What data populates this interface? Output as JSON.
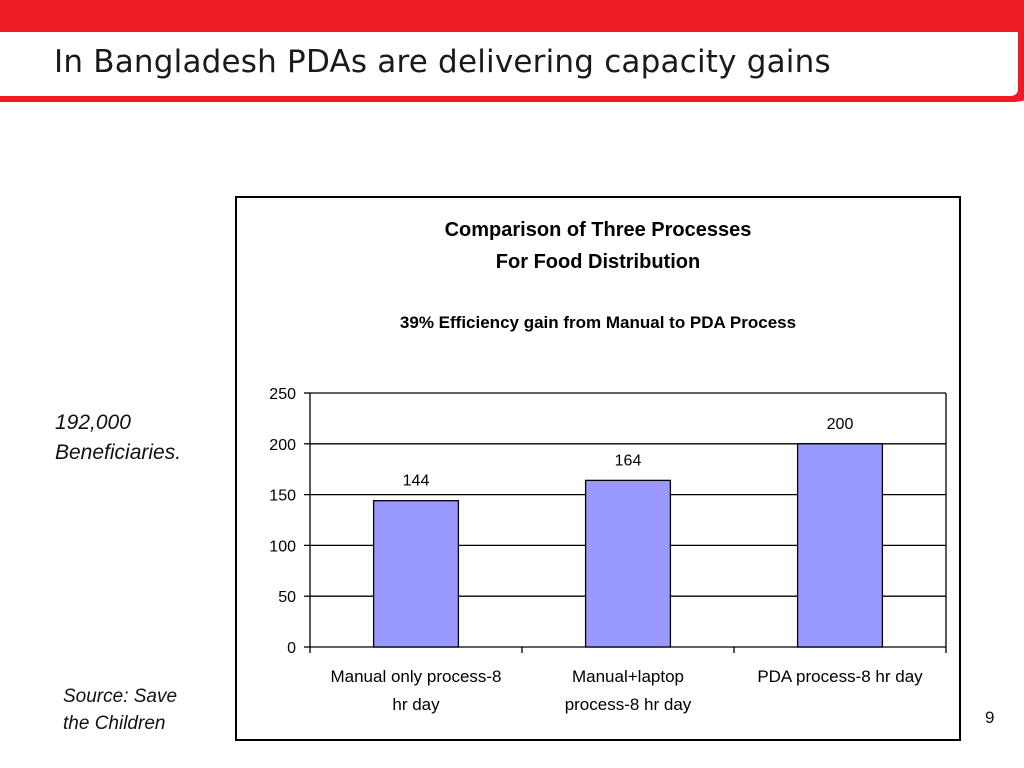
{
  "slide": {
    "title": "In Bangladesh PDAs are delivering capacity gains",
    "beneficiaries_line1": "192,000",
    "beneficiaries_line2": "Beneficiaries.",
    "source_line1": "Source: Save",
    "source_line2": "the Children",
    "page_number": "9"
  },
  "colors": {
    "accent": "#ee1c25",
    "bar": "#9999ff",
    "text": "#000000"
  },
  "chart_data": {
    "type": "bar",
    "title": "Comparison of Three Processes",
    "subtitle": "For Food Distribution",
    "annotation": "39% Efficiency gain from Manual to PDA Process",
    "categories": [
      {
        "line1": "Manual only process-8",
        "line2": "hr day"
      },
      {
        "line1": "Manual+laptop",
        "line2": "process-8 hr day"
      },
      {
        "line1": "PDA process-8 hr day",
        "line2": ""
      }
    ],
    "values": [
      144,
      164,
      200
    ],
    "data_labels": [
      "144",
      "164",
      "200"
    ],
    "ylim": [
      0,
      250
    ],
    "yticks": [
      0,
      50,
      100,
      150,
      200,
      250
    ],
    "grid": true,
    "legend": "none"
  }
}
